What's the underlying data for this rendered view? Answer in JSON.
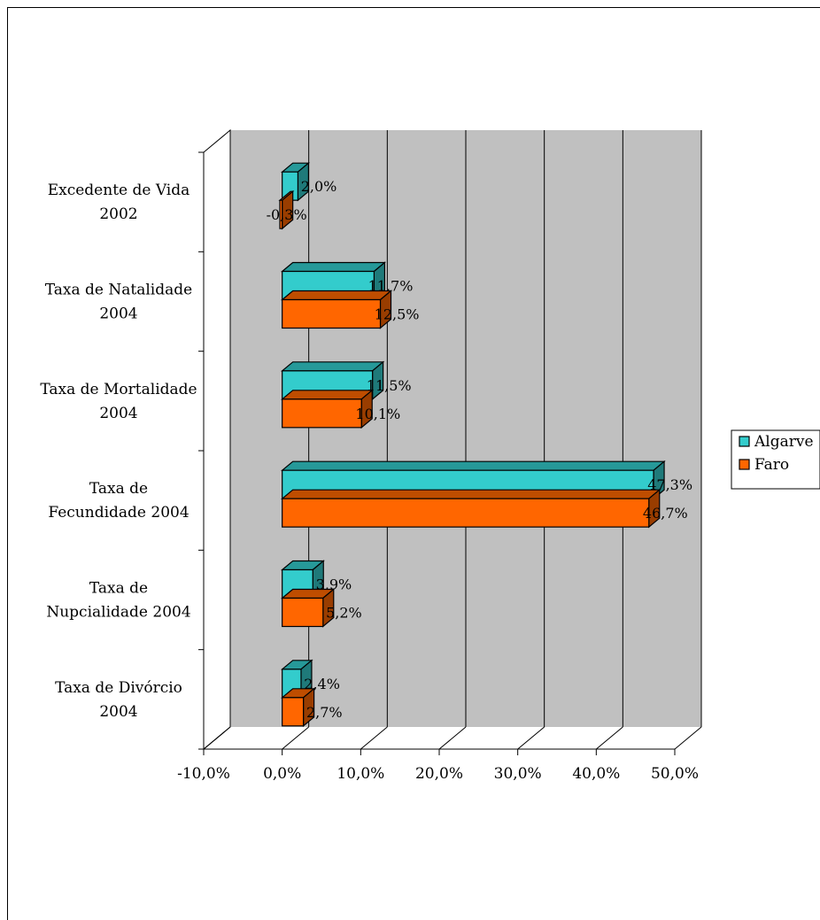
{
  "chart_data": {
    "type": "bar",
    "orientation": "horizontal",
    "style": "3d",
    "categories": [
      "Excedente de Vida 2002",
      "Taxa de Natalidade 2004",
      "Taxa de Mortalidade 2004",
      "Taxa de Fecundidade 2004",
      "Taxa de Nupcialidade 2004",
      "Taxa de Divórcio 2004"
    ],
    "category_lines": [
      [
        "Excedente de Vida",
        "2002"
      ],
      [
        "Taxa de Natalidade",
        "2004"
      ],
      [
        "Taxa de Mortalidade",
        "2004"
      ],
      [
        "Taxa de",
        "Fecundidade 2004"
      ],
      [
        "Taxa de",
        "Nupcialidade 2004"
      ],
      [
        "Taxa de Divórcio",
        "2004"
      ]
    ],
    "series": [
      {
        "name": "Algarve",
        "color": "#33CCCC",
        "values": [
          2.0,
          11.7,
          11.5,
          47.3,
          3.9,
          2.4
        ],
        "labels": [
          "2,0%",
          "11,7%",
          "11,5%",
          "47,3%",
          "3,9%",
          "2,4%"
        ]
      },
      {
        "name": "Faro",
        "color": "#FF6600",
        "values": [
          -0.3,
          12.5,
          10.1,
          46.7,
          5.2,
          2.7
        ],
        "labels": [
          "-0,3%",
          "12,5%",
          "10,1%",
          "46,7%",
          "5,2%",
          "2,7%"
        ]
      }
    ],
    "xlim": [
      -10,
      50
    ],
    "xticks": [
      -10,
      0,
      10,
      20,
      30,
      40,
      50
    ],
    "xtick_labels": [
      "-10,0%",
      "0,0%",
      "10,0%",
      "20,0%",
      "30,0%",
      "40,0%",
      "50,0%"
    ],
    "grid": true,
    "wall_color": "#C0C0C0",
    "legend_position": "right"
  }
}
